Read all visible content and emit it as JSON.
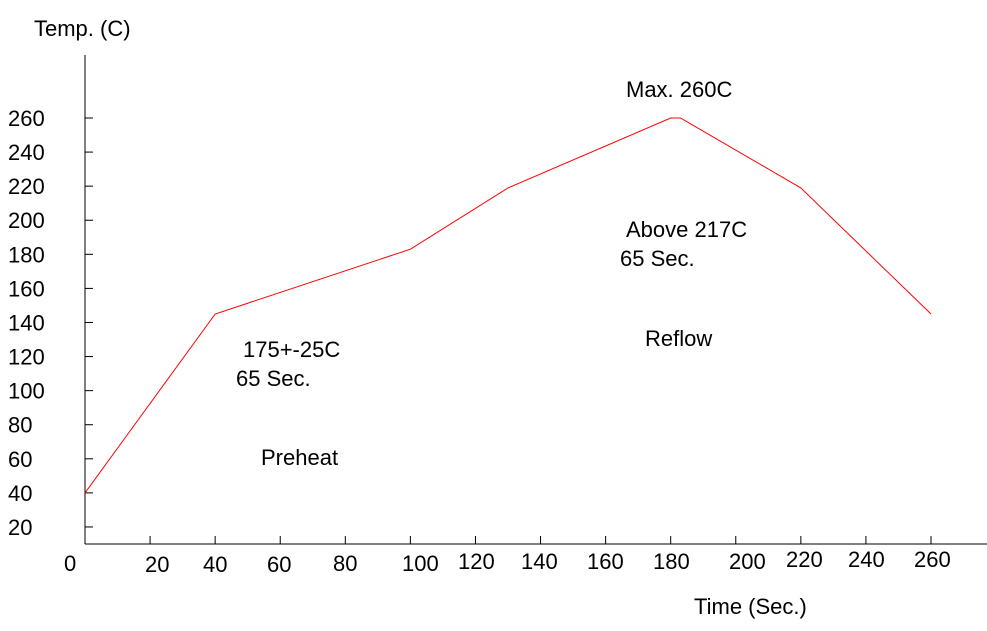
{
  "chart_data": {
    "type": "line",
    "title": "",
    "xlabel": "Time (Sec.)",
    "ylabel": "Temp. (C)",
    "xlim": [
      0,
      280
    ],
    "ylim": [
      10,
      290
    ],
    "grid": false,
    "x_ticks": [
      "0",
      "20",
      "40",
      "60",
      "80",
      "100",
      "120",
      "140",
      "160",
      "180",
      "200",
      "220",
      "240",
      "260"
    ],
    "y_ticks": [
      "20",
      "40",
      "60",
      "80",
      "100",
      "120",
      "140",
      "160",
      "180",
      "200",
      "220",
      "240",
      "260"
    ],
    "series": [
      {
        "x": [
          0,
          40,
          100,
          130,
          180,
          183,
          220,
          260
        ],
        "y": [
          40,
          145,
          183,
          219,
          260,
          260,
          219,
          145
        ],
        "color": "#ff0000"
      }
    ],
    "annotations": {
      "max": "Max. 260C",
      "above_temp": "Above 217C",
      "above_time": "65 Sec.",
      "reflow": "Reflow",
      "preheat_temp": "175+-25C",
      "preheat_time": "65 Sec.",
      "preheat": "Preheat"
    }
  }
}
